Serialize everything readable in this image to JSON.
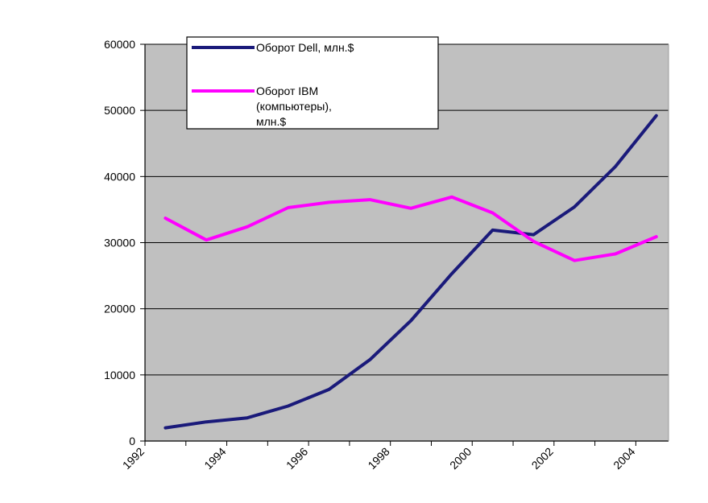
{
  "chart_data": {
    "type": "line",
    "title": "",
    "xlabel": "",
    "ylabel": "",
    "x": [
      1992.5,
      1993.5,
      1994.5,
      1995.5,
      1996.5,
      1997.5,
      1998.5,
      1999.5,
      2000.5,
      2001.5,
      2002.5,
      2003.5,
      2004.5
    ],
    "xlim": [
      1992,
      2004.8
    ],
    "ylim": [
      0,
      60000
    ],
    "x_ticks": [
      "1992",
      "1994",
      "1996",
      "1998",
      "2000",
      "2002",
      "2004"
    ],
    "y_ticks": [
      "0",
      "10000",
      "20000",
      "30000",
      "40000",
      "50000",
      "60000"
    ],
    "grid": true,
    "legend_position": "top-left",
    "series": [
      {
        "name": "Оборот Dell, млн.$",
        "legend_lines": [
          "Оборот Dell, млн.$"
        ],
        "color": "#1a1a7a",
        "values": [
          2000,
          2900,
          3500,
          5300,
          7800,
          12300,
          18200,
          25300,
          31900,
          31200,
          35400,
          41500,
          49200
        ]
      },
      {
        "name": "Оборот IBM (компьютеры), млн.$",
        "legend_lines": [
          "Оборот IBM",
          "(компьютеры),",
          "млн.$"
        ],
        "color": "#ff00ff",
        "values": [
          33700,
          30400,
          32400,
          35300,
          36100,
          36500,
          35200,
          36900,
          34500,
          30200,
          27300,
          28300,
          30900
        ]
      }
    ],
    "plot_background": "#c0c0c0"
  }
}
